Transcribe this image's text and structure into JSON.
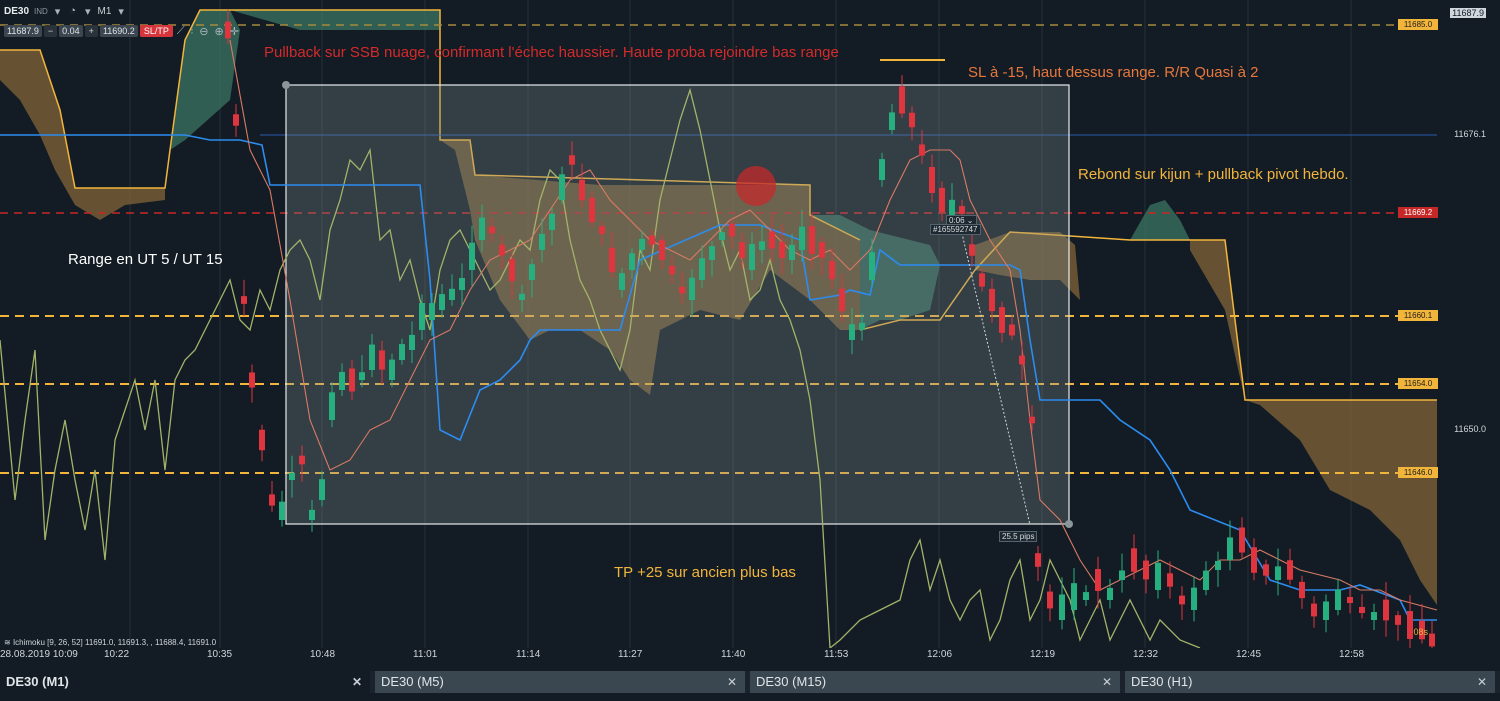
{
  "toolbar": {
    "symbol": "DE30",
    "market": "IND",
    "timeframe": "M1",
    "bid": "11687.9",
    "volume": "0.04",
    "ask": "11690.2",
    "sltp_label": "SL/TP",
    "icons": [
      "chart-type-icon",
      "indicators-icon",
      "zoom-out-icon",
      "zoom-in-icon",
      "crosshair-icon"
    ]
  },
  "annotations": {
    "pullback": "Pullback sur SSB nuage, confirmant l'échec haussier. Haute proba rejoindre bas range",
    "sl": "SL à -15, haut dessus range. R/R Quasi à 2",
    "rebond": "Rebond sur kijun + pullback pivot hebdo.",
    "range": "Range en UT 5 / UT 15",
    "tp": "TP +25 sur ancien plus bas"
  },
  "position": {
    "timer": "0:06",
    "id": "#165592747",
    "pips": "25.5 pips"
  },
  "price_axis": {
    "top": "11687.9",
    "tags": [
      {
        "value": "11685.0",
        "style": "yellow"
      },
      {
        "value": "11669.2",
        "style": "red"
      },
      {
        "value": "11660.1",
        "style": "yellow"
      },
      {
        "value": "11654.0",
        "style": "yellow"
      },
      {
        "value": "11646.0",
        "style": "yellow"
      }
    ],
    "plain": [
      "11676.1",
      "11650.0"
    ],
    "candle_timer": "08s"
  },
  "time_axis": {
    "date": "28.08.2019 10:09",
    "labels": [
      "10:22",
      "10:35",
      "10:48",
      "11:01",
      "11:14",
      "11:27",
      "11:40",
      "11:53",
      "12:06",
      "12:19",
      "12:32",
      "12:45",
      "12:58"
    ]
  },
  "indicator": {
    "legend": "Ichimoku [9, 26, 52] 11691.0, 11691.3, , 11688.4, 11691.0"
  },
  "tabs": [
    {
      "label": "DE30 (M1)",
      "active": true
    },
    {
      "label": "DE30 (M5)",
      "active": false
    },
    {
      "label": "DE30 (M15)",
      "active": false
    },
    {
      "label": "DE30 (H1)",
      "active": false
    }
  ],
  "colors": {
    "background": "#131c24",
    "bull": "#27b07f",
    "bear": "#e0343f",
    "level": "#f2b53c",
    "kijun": "#2c8cf0",
    "cloud_bear": "#8a6a3a",
    "cloud_bull": "#3d7b68"
  }
}
